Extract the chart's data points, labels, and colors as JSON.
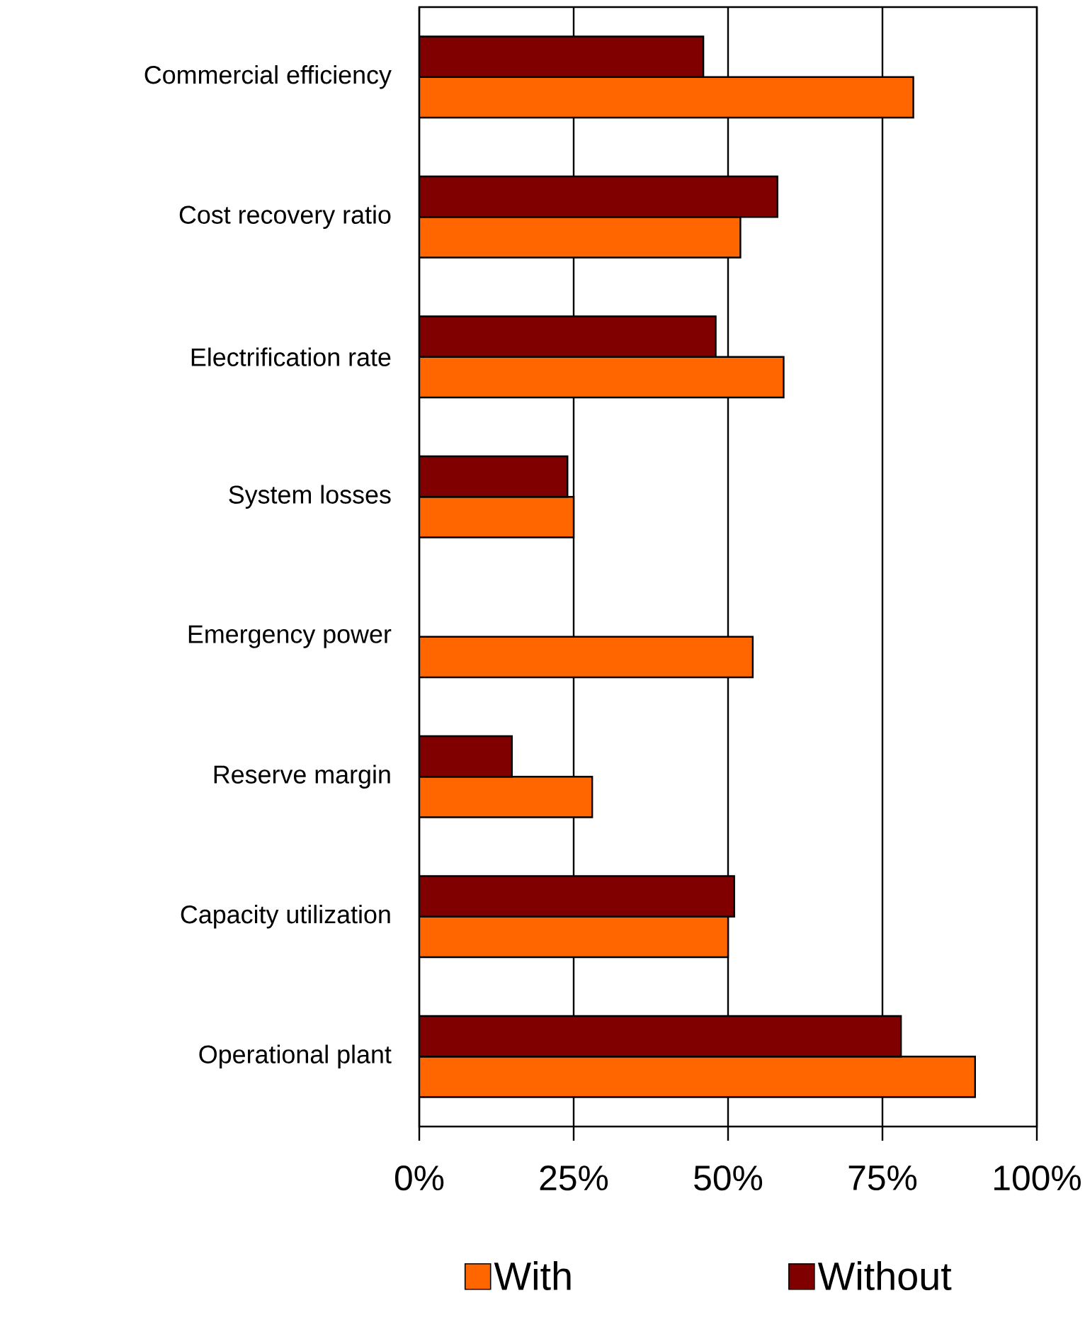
{
  "chart_data": {
    "type": "bar",
    "orientation": "horizontal",
    "categories": [
      "Commercial efficiency",
      "Cost recovery ratio",
      "Electrification rate",
      "System losses",
      "Emergency power",
      "Reserve margin",
      "Capacity utilization",
      "Operational plant"
    ],
    "series": [
      {
        "name": "With",
        "color": "#ff6600",
        "values": [
          80,
          52,
          59,
          25,
          54,
          28,
          50,
          90
        ]
      },
      {
        "name": "Without",
        "color": "#800000",
        "values": [
          46,
          58,
          48,
          24,
          null,
          15,
          51,
          78
        ]
      }
    ],
    "xlim": [
      0,
      100
    ],
    "xticks": [
      {
        "value": 0,
        "label": "0%"
      },
      {
        "value": 25,
        "label": "25%"
      },
      {
        "value": 50,
        "label": "50%"
      },
      {
        "value": 75,
        "label": "75%"
      },
      {
        "value": 100,
        "label": "100%"
      }
    ],
    "grid": "x",
    "legend": "bottom"
  }
}
